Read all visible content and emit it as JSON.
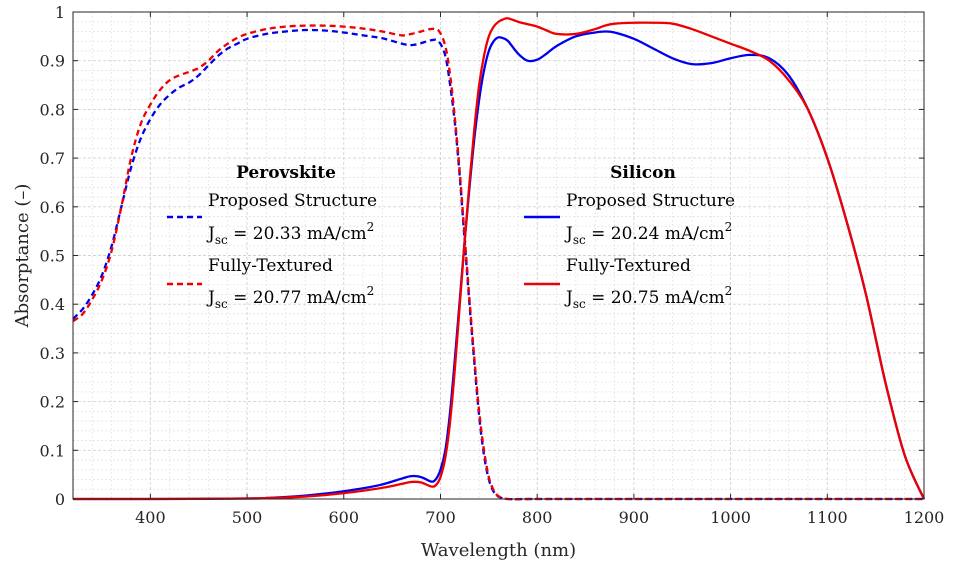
{
  "chart_data": {
    "type": "line",
    "xlabel": "Wavelength (nm)",
    "ylabel": "Absorptance (–)",
    "xlim": [
      320,
      1200
    ],
    "ylim": [
      0,
      1
    ],
    "xticks": [
      400,
      500,
      600,
      700,
      800,
      900,
      1000,
      1100,
      1200
    ],
    "yticks": [
      0,
      0.1,
      0.2,
      0.3,
      0.4,
      0.5,
      0.6,
      0.7,
      0.8,
      0.9,
      1
    ],
    "ytick_labels": [
      "0",
      "0.1",
      "0.2",
      "0.3",
      "0.4",
      "0.5",
      "0.6",
      "0.7",
      "0.8",
      "0.9",
      "1"
    ],
    "grid": true,
    "minor_grid": true,
    "legends": [
      {
        "title": "Perovskite",
        "position": "center-left",
        "entries": [
          {
            "label": "Proposed Structure",
            "jsc_prefix": "J",
            "jsc_sub": "sc",
            "jsc_value": " = 20.33 mA/cm",
            "jsc_sup": "2",
            "color": "#0000ee",
            "dash": true
          },
          {
            "label": "Fully-Textured",
            "jsc_prefix": "J",
            "jsc_sub": "sc",
            "jsc_value": " = 20.77 mA/cm",
            "jsc_sup": "2",
            "color": "#ee0000",
            "dash": true
          }
        ]
      },
      {
        "title": "Silicon",
        "position": "center-right",
        "entries": [
          {
            "label": "Proposed Structure",
            "jsc_prefix": "J",
            "jsc_sub": "sc",
            "jsc_value": " = 20.24 mA/cm",
            "jsc_sup": "2",
            "color": "#0000ee",
            "dash": false
          },
          {
            "label": "Fully-Textured",
            "jsc_prefix": "J",
            "jsc_sub": "sc",
            "jsc_value": " = 20.75 mA/cm",
            "jsc_sup": "2",
            "color": "#ee0000",
            "dash": false
          }
        ]
      }
    ],
    "series": [
      {
        "name": "Perovskite - Proposed Structure",
        "color": "#0000ee",
        "dash": true,
        "x": [
          320,
          330,
          340,
          350,
          360,
          370,
          380,
          390,
          400,
          410,
          420,
          430,
          440,
          450,
          460,
          470,
          480,
          490,
          500,
          520,
          540,
          560,
          580,
          600,
          620,
          640,
          660,
          670,
          680,
          690,
          698,
          705,
          710,
          715,
          720,
          725,
          730,
          735,
          740,
          745,
          750,
          755,
          760,
          770,
          800,
          900,
          1000,
          1100,
          1200
        ],
        "y": [
          0.37,
          0.39,
          0.42,
          0.46,
          0.52,
          0.6,
          0.68,
          0.74,
          0.78,
          0.81,
          0.83,
          0.845,
          0.855,
          0.87,
          0.89,
          0.91,
          0.925,
          0.935,
          0.945,
          0.955,
          0.96,
          0.963,
          0.962,
          0.958,
          0.952,
          0.946,
          0.935,
          0.932,
          0.936,
          0.942,
          0.94,
          0.91,
          0.85,
          0.77,
          0.66,
          0.53,
          0.4,
          0.28,
          0.17,
          0.09,
          0.04,
          0.015,
          0.005,
          0,
          0,
          0,
          0,
          0,
          0
        ]
      },
      {
        "name": "Perovskite - Fully-Textured",
        "color": "#ee0000",
        "dash": true,
        "x": [
          320,
          330,
          340,
          350,
          360,
          370,
          380,
          390,
          400,
          410,
          420,
          430,
          440,
          450,
          460,
          470,
          480,
          490,
          500,
          520,
          540,
          560,
          580,
          600,
          620,
          640,
          660,
          670,
          680,
          690,
          698,
          705,
          710,
          715,
          720,
          725,
          730,
          735,
          740,
          745,
          750,
          755,
          760,
          770,
          800,
          900,
          1000,
          1100,
          1200
        ],
        "y": [
          0.365,
          0.38,
          0.41,
          0.45,
          0.51,
          0.6,
          0.7,
          0.77,
          0.81,
          0.84,
          0.86,
          0.87,
          0.877,
          0.885,
          0.9,
          0.92,
          0.935,
          0.947,
          0.955,
          0.965,
          0.97,
          0.972,
          0.972,
          0.97,
          0.966,
          0.96,
          0.952,
          0.955,
          0.96,
          0.965,
          0.962,
          0.93,
          0.87,
          0.78,
          0.67,
          0.54,
          0.41,
          0.29,
          0.18,
          0.1,
          0.045,
          0.018,
          0.006,
          0,
          0,
          0,
          0,
          0,
          0
        ]
      },
      {
        "name": "Silicon - Proposed Structure",
        "color": "#0000ee",
        "dash": false,
        "x": [
          320,
          400,
          500,
          520,
          540,
          560,
          580,
          600,
          620,
          640,
          660,
          670,
          680,
          690,
          695,
          700,
          705,
          710,
          715,
          720,
          725,
          730,
          735,
          740,
          745,
          750,
          755,
          760,
          765,
          770,
          780,
          790,
          800,
          810,
          820,
          840,
          860,
          870,
          880,
          900,
          920,
          940,
          960,
          980,
          1000,
          1020,
          1040,
          1060,
          1080,
          1100,
          1120,
          1140,
          1160,
          1180,
          1200
        ],
        "y": [
          0,
          0,
          0.001,
          0.002,
          0.004,
          0.007,
          0.011,
          0.016,
          0.022,
          0.03,
          0.042,
          0.047,
          0.045,
          0.036,
          0.04,
          0.06,
          0.1,
          0.18,
          0.29,
          0.41,
          0.53,
          0.64,
          0.74,
          0.82,
          0.88,
          0.92,
          0.94,
          0.948,
          0.946,
          0.94,
          0.915,
          0.9,
          0.902,
          0.915,
          0.93,
          0.95,
          0.958,
          0.96,
          0.958,
          0.945,
          0.925,
          0.905,
          0.893,
          0.895,
          0.905,
          0.912,
          0.905,
          0.87,
          0.8,
          0.7,
          0.57,
          0.42,
          0.24,
          0.09,
          0
        ]
      },
      {
        "name": "Silicon - Fully-Textured",
        "color": "#ee0000",
        "dash": false,
        "x": [
          320,
          400,
          500,
          520,
          540,
          560,
          580,
          600,
          620,
          640,
          660,
          670,
          680,
          690,
          695,
          700,
          705,
          710,
          715,
          720,
          725,
          730,
          735,
          740,
          745,
          750,
          755,
          760,
          765,
          770,
          780,
          790,
          800,
          810,
          820,
          840,
          860,
          870,
          880,
          900,
          920,
          940,
          960,
          980,
          1000,
          1020,
          1040,
          1060,
          1080,
          1100,
          1120,
          1140,
          1160,
          1180,
          1200
        ],
        "y": [
          0,
          0,
          0.001,
          0.002,
          0.003,
          0.005,
          0.008,
          0.012,
          0.017,
          0.023,
          0.031,
          0.035,
          0.034,
          0.026,
          0.028,
          0.045,
          0.085,
          0.16,
          0.27,
          0.4,
          0.53,
          0.65,
          0.76,
          0.85,
          0.91,
          0.95,
          0.97,
          0.98,
          0.985,
          0.987,
          0.98,
          0.975,
          0.97,
          0.962,
          0.955,
          0.955,
          0.965,
          0.972,
          0.976,
          0.978,
          0.978,
          0.976,
          0.965,
          0.95,
          0.935,
          0.92,
          0.9,
          0.86,
          0.8,
          0.7,
          0.57,
          0.42,
          0.24,
          0.09,
          0
        ]
      }
    ]
  }
}
